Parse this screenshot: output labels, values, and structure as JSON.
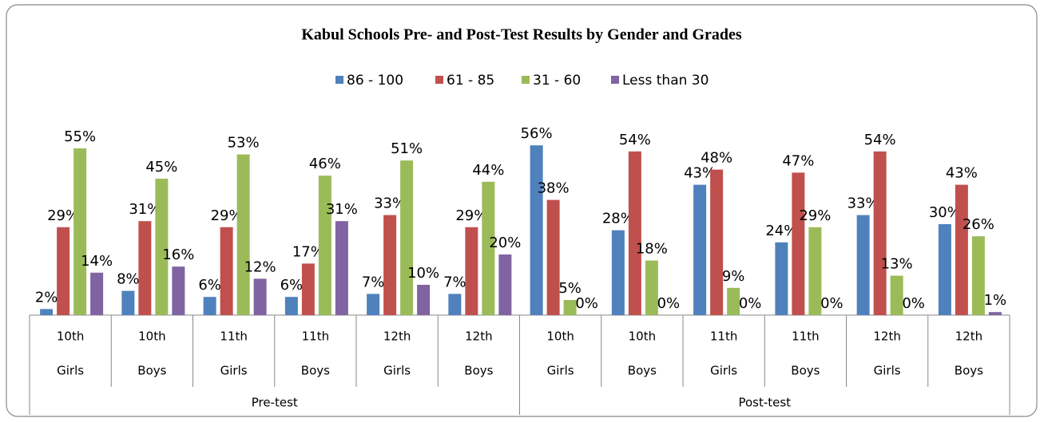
{
  "chart_data": {
    "type": "bar",
    "title": "Kabul Schools Pre- and Post-Test Results by Gender and Grades",
    "groups": [
      {
        "label": "Pre-test",
        "categories": [
          {
            "grade": "10th",
            "gender": "Girls"
          },
          {
            "grade": "10th",
            "gender": "Boys"
          },
          {
            "grade": "11th",
            "gender": "Girls"
          },
          {
            "grade": "11th",
            "gender": "Boys"
          },
          {
            "grade": "12th",
            "gender": "Girls"
          },
          {
            "grade": "12th",
            "gender": "Boys"
          }
        ]
      },
      {
        "label": "Post-test",
        "categories": [
          {
            "grade": "10th",
            "gender": "Girls"
          },
          {
            "grade": "10th",
            "gender": "Boys"
          },
          {
            "grade": "11th",
            "gender": "Girls"
          },
          {
            "grade": "11th",
            "gender": "Boys"
          },
          {
            "grade": "12th",
            "gender": "Girls"
          },
          {
            "grade": "12th",
            "gender": "Boys"
          }
        ]
      }
    ],
    "series": [
      {
        "name": "86 - 100",
        "color": "#4f81bd",
        "values": [
          2,
          8,
          6,
          6,
          7,
          7,
          56,
          28,
          43,
          24,
          33,
          30
        ],
        "value_labels": [
          "2%",
          "8%",
          "6%",
          "6%",
          "7%",
          "7%",
          "56%",
          "28%",
          "43%",
          "24%",
          "33%",
          "30%"
        ]
      },
      {
        "name": "61 - 85",
        "color": "#c0504d",
        "values": [
          29,
          31,
          29,
          17,
          33,
          29,
          38,
          54,
          48,
          47,
          54,
          43
        ],
        "value_labels": [
          "29%",
          "31%",
          "29%",
          "17%",
          "33%",
          "29%",
          "38%",
          "54%",
          "48%",
          "47%",
          "54%",
          "43%"
        ]
      },
      {
        "name": "31 - 60",
        "color": "#9bbb59",
        "values": [
          55,
          45,
          53,
          46,
          51,
          44,
          5,
          18,
          9,
          29,
          13,
          26
        ],
        "value_labels": [
          "55%",
          "45%",
          "53%",
          "46%",
          "51%",
          "44%",
          "5%",
          "18%",
          "9%",
          "29%",
          "13%",
          "26%"
        ]
      },
      {
        "name": "Less than 30",
        "color": "#8064a2",
        "values": [
          14,
          16,
          12,
          31,
          10,
          20,
          0,
          0,
          0,
          0,
          0,
          1
        ],
        "value_labels": [
          "14%",
          "16%",
          "12%",
          "31%",
          "10%",
          "20%",
          "0%",
          "0%",
          "0%",
          "0%",
          "0%",
          "1%"
        ]
      }
    ],
    "ylim": [
      0,
      60
    ],
    "legend": "top"
  }
}
